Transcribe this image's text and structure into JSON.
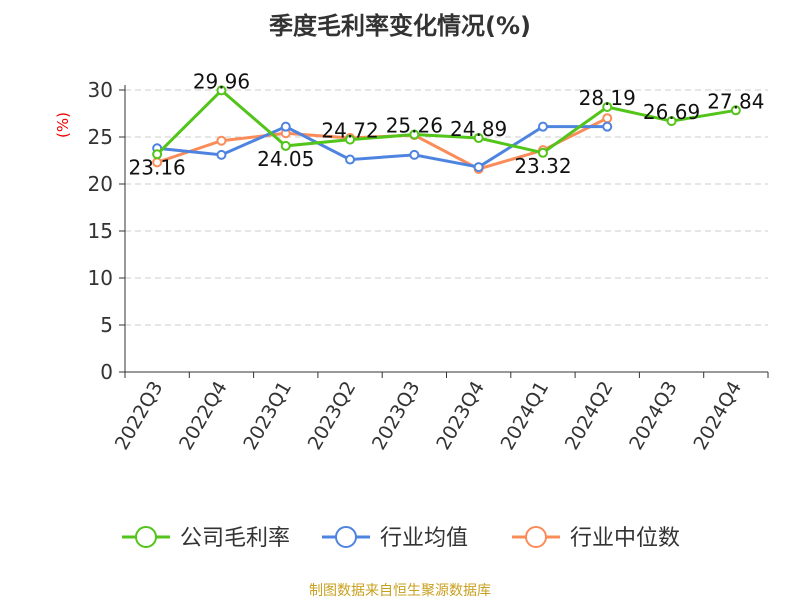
{
  "chart_data": {
    "type": "line",
    "title": "季度毛利率变化情况(%)",
    "ylabel": "(%)",
    "ylim": [
      0,
      30
    ],
    "yticks": [
      0,
      5,
      10,
      15,
      20,
      25,
      30
    ],
    "grid": true,
    "legend_position": "bottom",
    "categories": [
      "2022Q3",
      "2022Q4",
      "2023Q1",
      "2023Q2",
      "2023Q3",
      "2023Q4",
      "2024Q1",
      "2024Q2",
      "2024Q3",
      "2024Q4"
    ],
    "series": [
      {
        "name": "公司毛利率",
        "color": "#52c41a",
        "values": [
          23.16,
          29.96,
          24.05,
          24.72,
          25.26,
          24.89,
          23.32,
          28.19,
          26.69,
          27.84
        ],
        "labels": true
      },
      {
        "name": "行业均值",
        "color": "#4e84e0",
        "values": [
          23.8,
          23.1,
          26.1,
          22.6,
          23.1,
          21.8,
          26.1,
          26.1,
          null,
          null
        ]
      },
      {
        "name": "行业中位数",
        "color": "#fa8c5a",
        "values": [
          22.3,
          24.6,
          25.4,
          24.9,
          25.2,
          21.6,
          23.6,
          27.0,
          null,
          null
        ]
      }
    ]
  },
  "footer": "制图数据来自恒生聚源数据库"
}
